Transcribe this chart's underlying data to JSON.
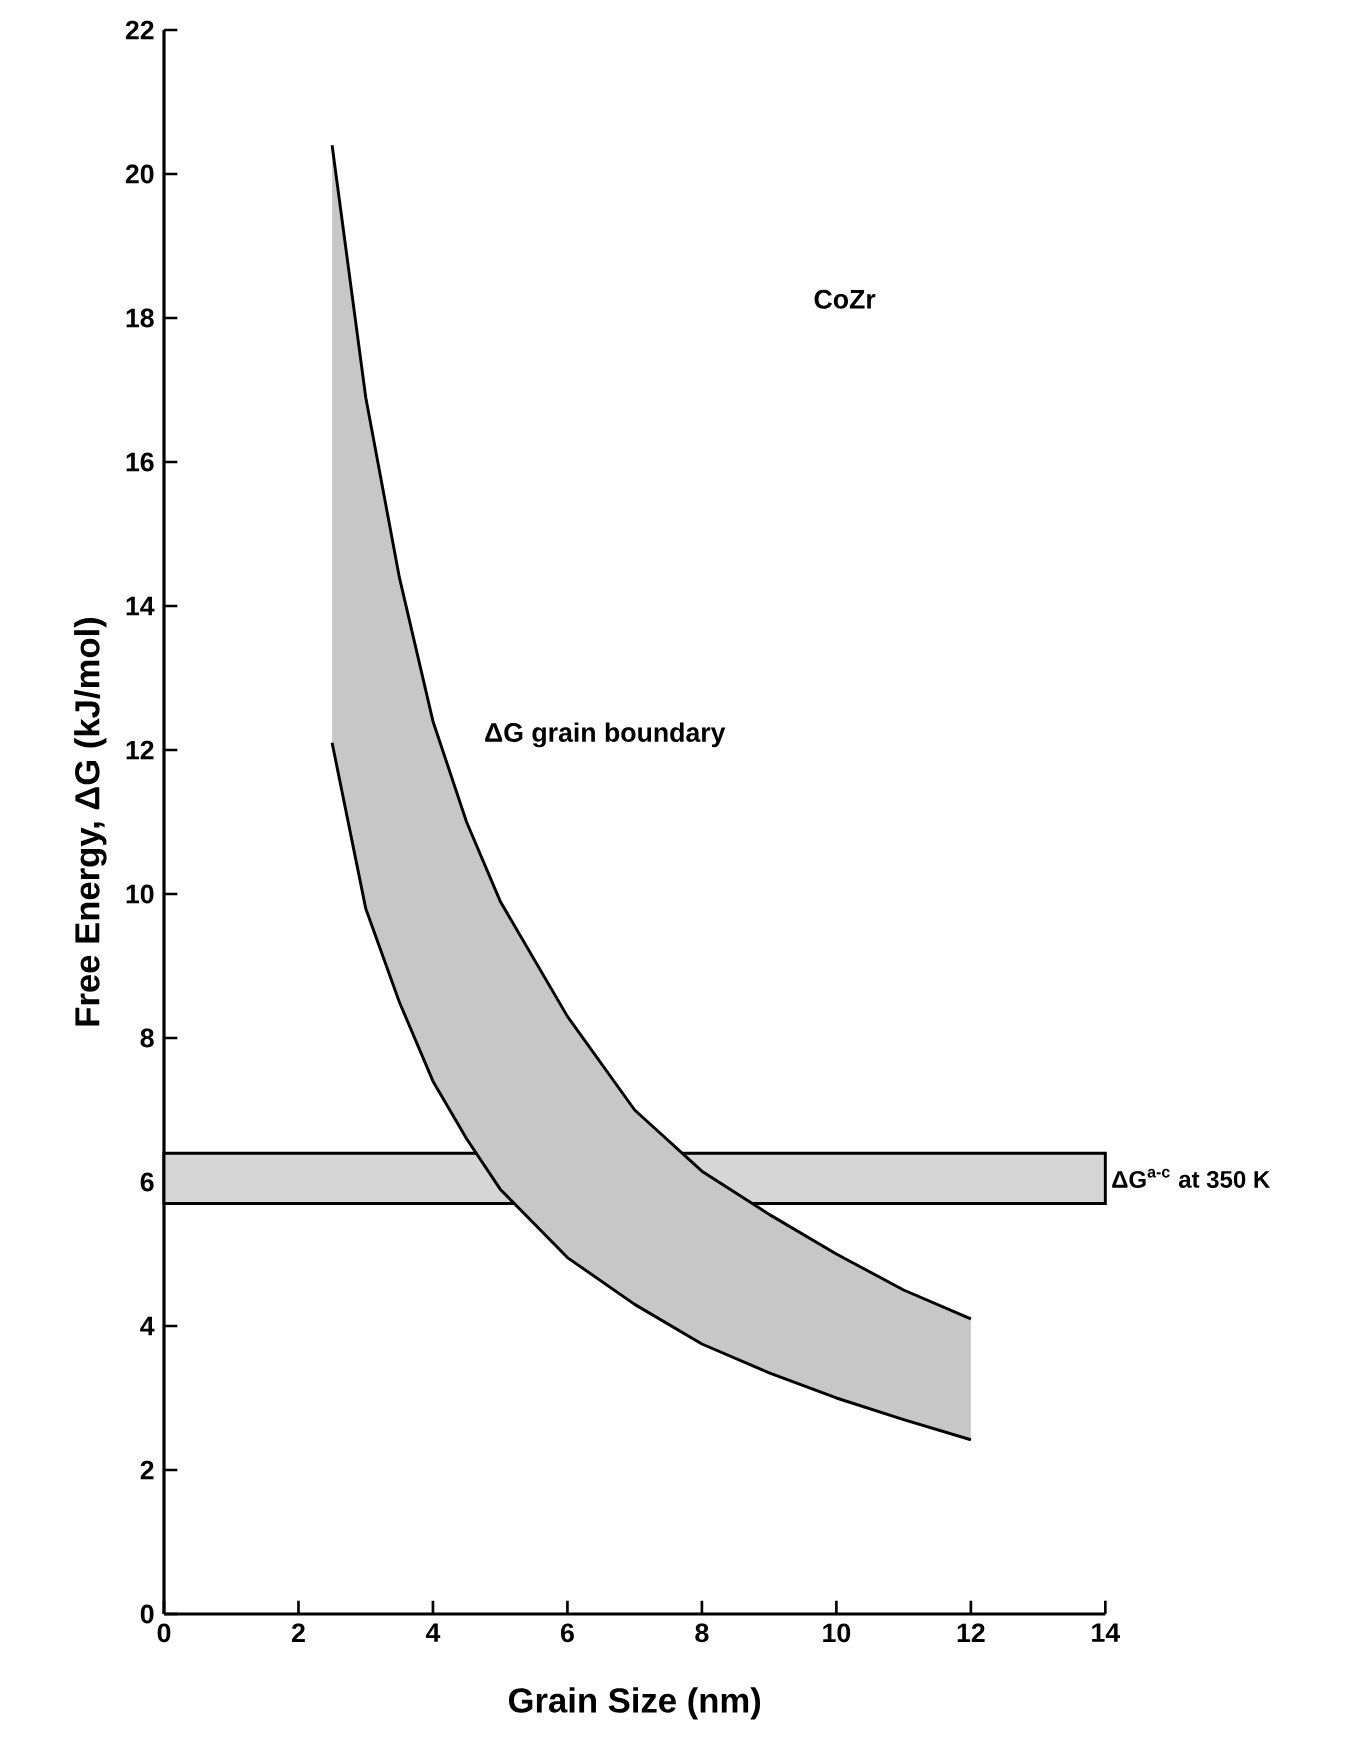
{
  "chart_data": {
    "type": "line",
    "xlabel": "Grain Size (nm)",
    "ylabel": "Free Energy, ΔG (kJ/mol)",
    "xlim": [
      0,
      14
    ],
    "ylim": [
      0,
      22
    ],
    "xticks": [
      0,
      2,
      4,
      6,
      8,
      10,
      12,
      14
    ],
    "yticks": [
      0,
      2,
      4,
      6,
      8,
      10,
      12,
      14,
      16,
      18,
      20,
      22
    ],
    "grid": false,
    "series": [
      {
        "color": "#000000",
        "x": [
          2.5,
          3,
          3.5,
          4,
          4.5,
          5,
          6,
          7,
          8,
          9,
          10,
          11,
          12
        ],
        "values": [
          20.4,
          16.9,
          14.4,
          12.4,
          11.0,
          9.9,
          8.3,
          7.0,
          6.15,
          5.55,
          5.0,
          4.5,
          4.1
        ],
        "upper": [
          20.4,
          16.9,
          14.4,
          12.4,
          11.0,
          9.9,
          8.3,
          7.0,
          6.15,
          5.55,
          5.0,
          4.5,
          4.1
        ],
        "lower": [
          12.1,
          9.8,
          8.5,
          7.4,
          6.6,
          5.9,
          4.95,
          4.3,
          3.75,
          3.35,
          3.0,
          2.7,
          2.42
        ]
      },
      {
        "color": "#000000",
        "x": [
          2.5,
          3,
          3.5,
          4,
          4.5,
          5,
          6,
          7,
          8,
          9,
          10,
          11,
          12
        ],
        "values": [
          12.1,
          9.8,
          8.5,
          7.4,
          6.6,
          5.9,
          4.95,
          4.3,
          3.75,
          3.35,
          3.0,
          2.7,
          2.42
        ]
      }
    ],
    "bands": [
      {
        "axis": "y",
        "from": 5.7,
        "to": 6.4,
        "label": "ΔG$^{a-c}$ at 350 K",
        "color": "#d6d6d6"
      }
    ],
    "annotations": [
      "CoZr",
      "ΔG grain boundary"
    ]
  }
}
